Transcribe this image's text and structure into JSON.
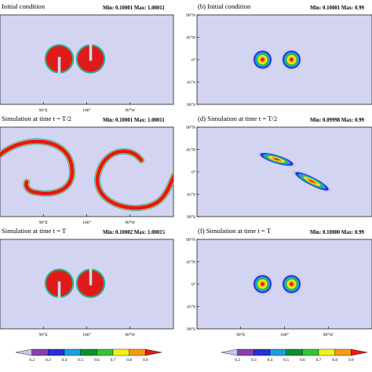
{
  "chart_data": [
    {
      "type": "heatmap",
      "panel": "a",
      "title": "Initial condition",
      "stats": "Min: 0.10001 Max: 1.00011",
      "x_ticks": [
        "90°E",
        "180°",
        "90°W"
      ],
      "y_ticks": [],
      "pattern": "slotted-cylinders"
    },
    {
      "type": "heatmap",
      "panel": "b",
      "title": "(b) Initial condition",
      "stats": "Min: 0.10001 Max: 0.99",
      "x_ticks": [],
      "y_ticks": [
        "90°N",
        "45°N",
        "0°",
        "45°S",
        "90°S"
      ],
      "pattern": "cosine-bells"
    },
    {
      "type": "heatmap",
      "panel": "c",
      "title": "Simulation at time t = T/2",
      "stats": "Min: 0.10001 Max: 1.00011",
      "x_ticks": [
        "90°E",
        "180°",
        "90°W"
      ],
      "y_ticks": [],
      "pattern": "stretched-filaments"
    },
    {
      "type": "heatmap",
      "panel": "d",
      "title": "(d) Simulation at time t = T/2",
      "stats": "Min: 0.09998 Max: 0.99",
      "x_ticks": [],
      "y_ticks": [
        "90°N",
        "45°N",
        "0°",
        "45°S",
        "90°S"
      ],
      "pattern": "stretched-bells"
    },
    {
      "type": "heatmap",
      "panel": "e",
      "title": "Simulation at time t = T",
      "stats": "Min: 0.10002 Max: 1.00015",
      "x_ticks": [
        "90°E",
        "180°",
        "90°W"
      ],
      "y_ticks": [],
      "pattern": "slotted-cylinders"
    },
    {
      "type": "heatmap",
      "panel": "f",
      "title": "(f) Simulation at time t = T",
      "stats": "Min: 0.10000 Max: 0.99",
      "x_ticks": [
        "90°E",
        "180°",
        "90°W"
      ],
      "y_ticks": [
        "90°N",
        "45°N",
        "0°",
        "45°S",
        "90°S"
      ],
      "pattern": "cosine-bells"
    }
  ],
  "colorbar": {
    "labels": [
      "0.2",
      "0.3",
      "0.4",
      "0.5",
      "0.6",
      "0.7",
      "0.8",
      "0.9"
    ],
    "colors": [
      "#c8c8ee",
      "#8a3fb0",
      "#2830d8",
      "#1c9ee0",
      "#0f8f2e",
      "#35c435",
      "#f0f020",
      "#f59a16",
      "#e01a1a"
    ],
    "background": "#d2d4f2"
  }
}
